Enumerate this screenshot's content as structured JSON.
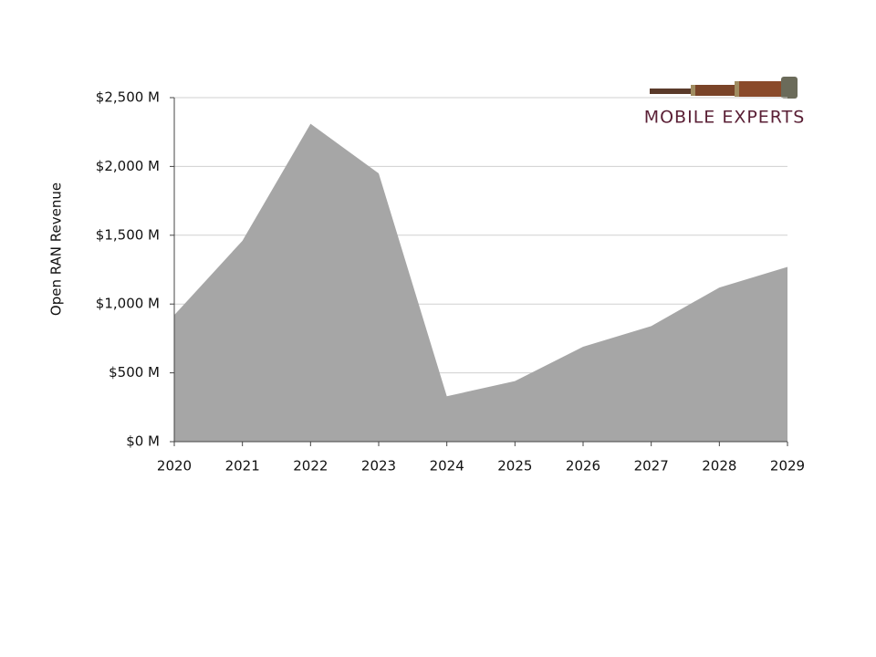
{
  "chart_data": {
    "type": "area",
    "y_label": "Open RAN  Revenue",
    "categories": [
      "2020",
      "2021",
      "2022",
      "2023",
      "2024",
      "2025",
      "2026",
      "2027",
      "2028",
      "2029"
    ],
    "values": [
      920,
      1460,
      2310,
      1950,
      330,
      440,
      690,
      840,
      1120,
      1270
    ],
    "color": "#a6a6a6",
    "ylim": [
      0,
      2500
    ],
    "yticks": [
      {
        "value": 0,
        "label": "$0 M"
      },
      {
        "value": 500,
        "label": "$500 M"
      },
      {
        "value": 1000,
        "label": "$1,000 M"
      },
      {
        "value": 1500,
        "label": "$1,500 M"
      },
      {
        "value": 2000,
        "label": "$2,000 M"
      },
      {
        "value": 2500,
        "label": "$2,500 M"
      }
    ],
    "grid": true
  },
  "logo": {
    "text": "MOBILE EXPERTS"
  }
}
